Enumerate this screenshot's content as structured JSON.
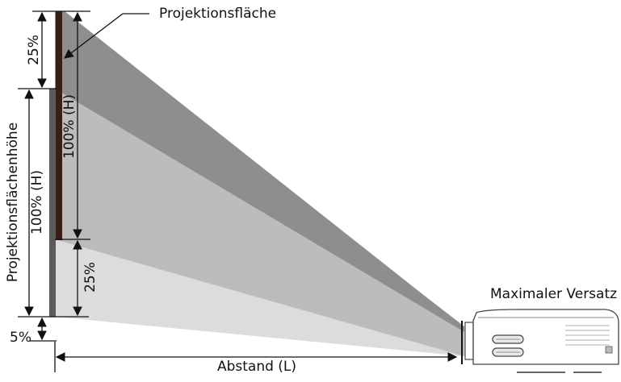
{
  "labels": {
    "projection_surface": "Projektionsfläche",
    "surface_height": "Projektionsflächenhöhe",
    "height_100_right": "100% (H)",
    "height_100_left": "100% (H)",
    "offset_top": "25%",
    "offset_bottom": "25%",
    "offset_min": "5%",
    "distance": "Abstand (L)",
    "max_offset": "Maximaler Versatz"
  },
  "colors": {
    "beam_dark": "#9a9a9a",
    "beam_mid": "#b9b9b9",
    "beam_light": "#dcdcdc",
    "screen": "#3a1e16",
    "screen_lower": "#5a5a5a",
    "line": "#111111"
  }
}
